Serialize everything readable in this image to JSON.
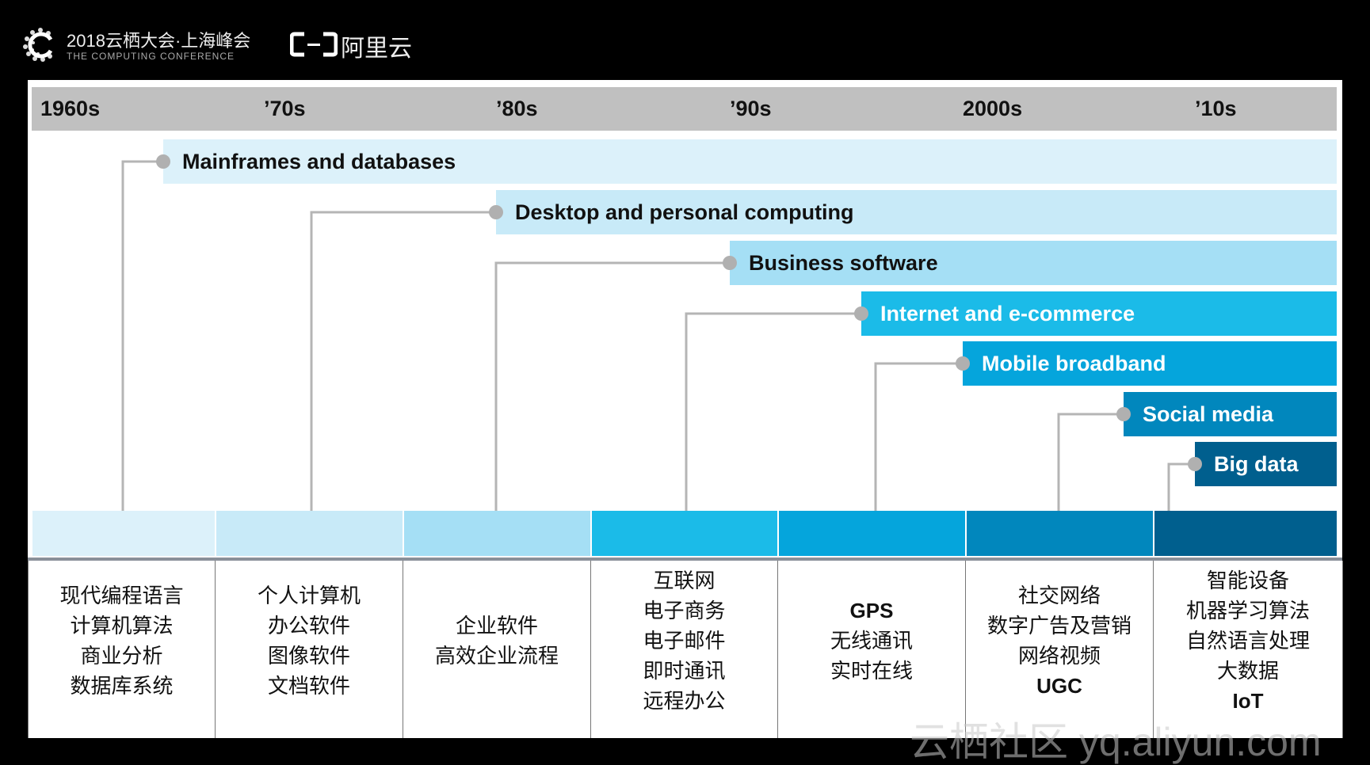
{
  "header": {
    "conference_title": "2018云栖大会·上海峰会",
    "conference_subtitle": "THE COMPUTING CONFERENCE",
    "brand": "阿里云"
  },
  "decades": [
    "1960s",
    "’70s",
    "’80s",
    "’90s",
    "2000s",
    "’10s"
  ],
  "eras": [
    {
      "label": "Mainframes and databases",
      "color": "#dcf1fa",
      "text_color": "#111111"
    },
    {
      "label": "Desktop and personal computing",
      "color": "#c8eaf8",
      "text_color": "#111111"
    },
    {
      "label": "Business software",
      "color": "#a5dff5",
      "text_color": "#111111"
    },
    {
      "label": "Internet and e-commerce",
      "color": "#1bbbe8",
      "text_color": "#ffffff"
    },
    {
      "label": "Mobile broadband",
      "color": "#05a5dc",
      "text_color": "#ffffff"
    },
    {
      "label": "Social media",
      "color": "#0187bd",
      "text_color": "#ffffff"
    },
    {
      "label": "Big data",
      "color": "#005f8e",
      "text_color": "#ffffff"
    }
  ],
  "columns": [
    {
      "items": [
        "现代编程语言",
        "计算机算法",
        "商业分析",
        "数据库系统"
      ]
    },
    {
      "items": [
        "个人计算机",
        "办公软件",
        "图像软件",
        "文档软件"
      ]
    },
    {
      "items": [
        "企业软件",
        "高效企业流程"
      ]
    },
    {
      "items": [
        "互联网",
        "电子商务",
        "电子邮件",
        "即时通讯",
        "远程办公"
      ]
    },
    {
      "items": [
        "GPS",
        "无线通讯",
        "实时在线"
      ]
    },
    {
      "items": [
        "社交网络",
        "数字广告及营销",
        "网络视频",
        "UGC"
      ]
    },
    {
      "items": [
        "智能设备",
        "机器学习算法",
        "自然语言处理",
        "大数据",
        "IoT"
      ]
    }
  ],
  "watermark": "云栖社区 yq.aliyun.com"
}
